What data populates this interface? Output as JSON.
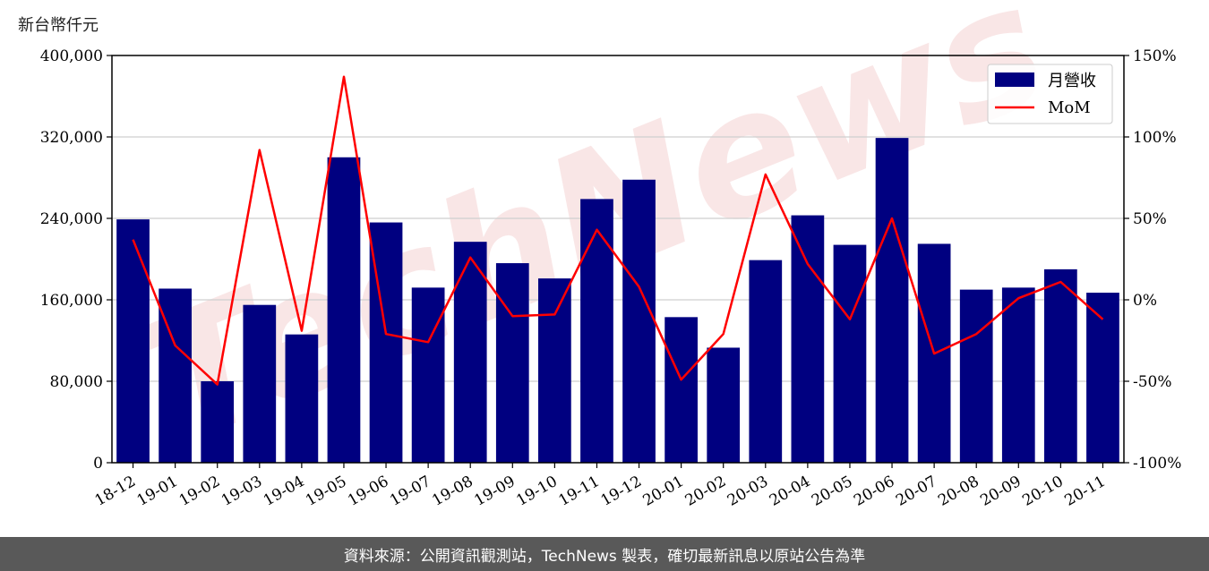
{
  "unit_label": "新台幣仟元",
  "footer_text": "資料來源：公開資訊觀測站，TechNews 製表，確切最新訊息以原站公告為準",
  "watermark_text": "TechNews",
  "colors": {
    "bar": "#000080",
    "line": "#ff0000",
    "watermark": "#f2c9c9",
    "footer_bg": "#595959"
  },
  "chart_data": {
    "type": "bar",
    "categories": [
      "18-12",
      "19-01",
      "19-02",
      "19-03",
      "19-04",
      "19-05",
      "19-06",
      "19-07",
      "19-08",
      "19-09",
      "19-10",
      "19-11",
      "19-12",
      "20-01",
      "20-02",
      "20-03",
      "20-04",
      "20-05",
      "20-06",
      "20-07",
      "20-08",
      "20-09",
      "20-10",
      "20-11"
    ],
    "series": [
      {
        "name": "月營收",
        "type": "bar",
        "axis": "left",
        "values": [
          239000,
          171000,
          80000,
          155000,
          126000,
          300000,
          236000,
          172000,
          217000,
          196000,
          181000,
          259000,
          278000,
          143000,
          113000,
          199000,
          243000,
          214000,
          319000,
          215000,
          170000,
          172000,
          190000,
          167000
        ]
      },
      {
        "name": "MoM",
        "type": "line",
        "axis": "right",
        "values": [
          37,
          -28,
          -52,
          92,
          -19,
          137,
          -21,
          -26,
          26,
          -10,
          -9,
          43,
          8,
          -49,
          -21,
          77,
          22,
          -12,
          50,
          -33,
          -21,
          1,
          11,
          -12
        ]
      }
    ],
    "y_left": {
      "ylim": [
        0,
        400000
      ],
      "ticks": [
        0,
        80000,
        160000,
        240000,
        320000,
        400000
      ],
      "tick_labels": [
        "0",
        "80,000",
        "160,000",
        "240,000",
        "320,000",
        "400,000"
      ]
    },
    "y_right": {
      "ylim": [
        -100,
        150
      ],
      "ticks": [
        -100,
        -50,
        0,
        50,
        100,
        150
      ],
      "tick_labels": [
        "-100%",
        "-50%",
        "0%",
        "50%",
        "100%",
        "150%"
      ]
    },
    "grid": "horizontal",
    "legend": "top-right"
  }
}
